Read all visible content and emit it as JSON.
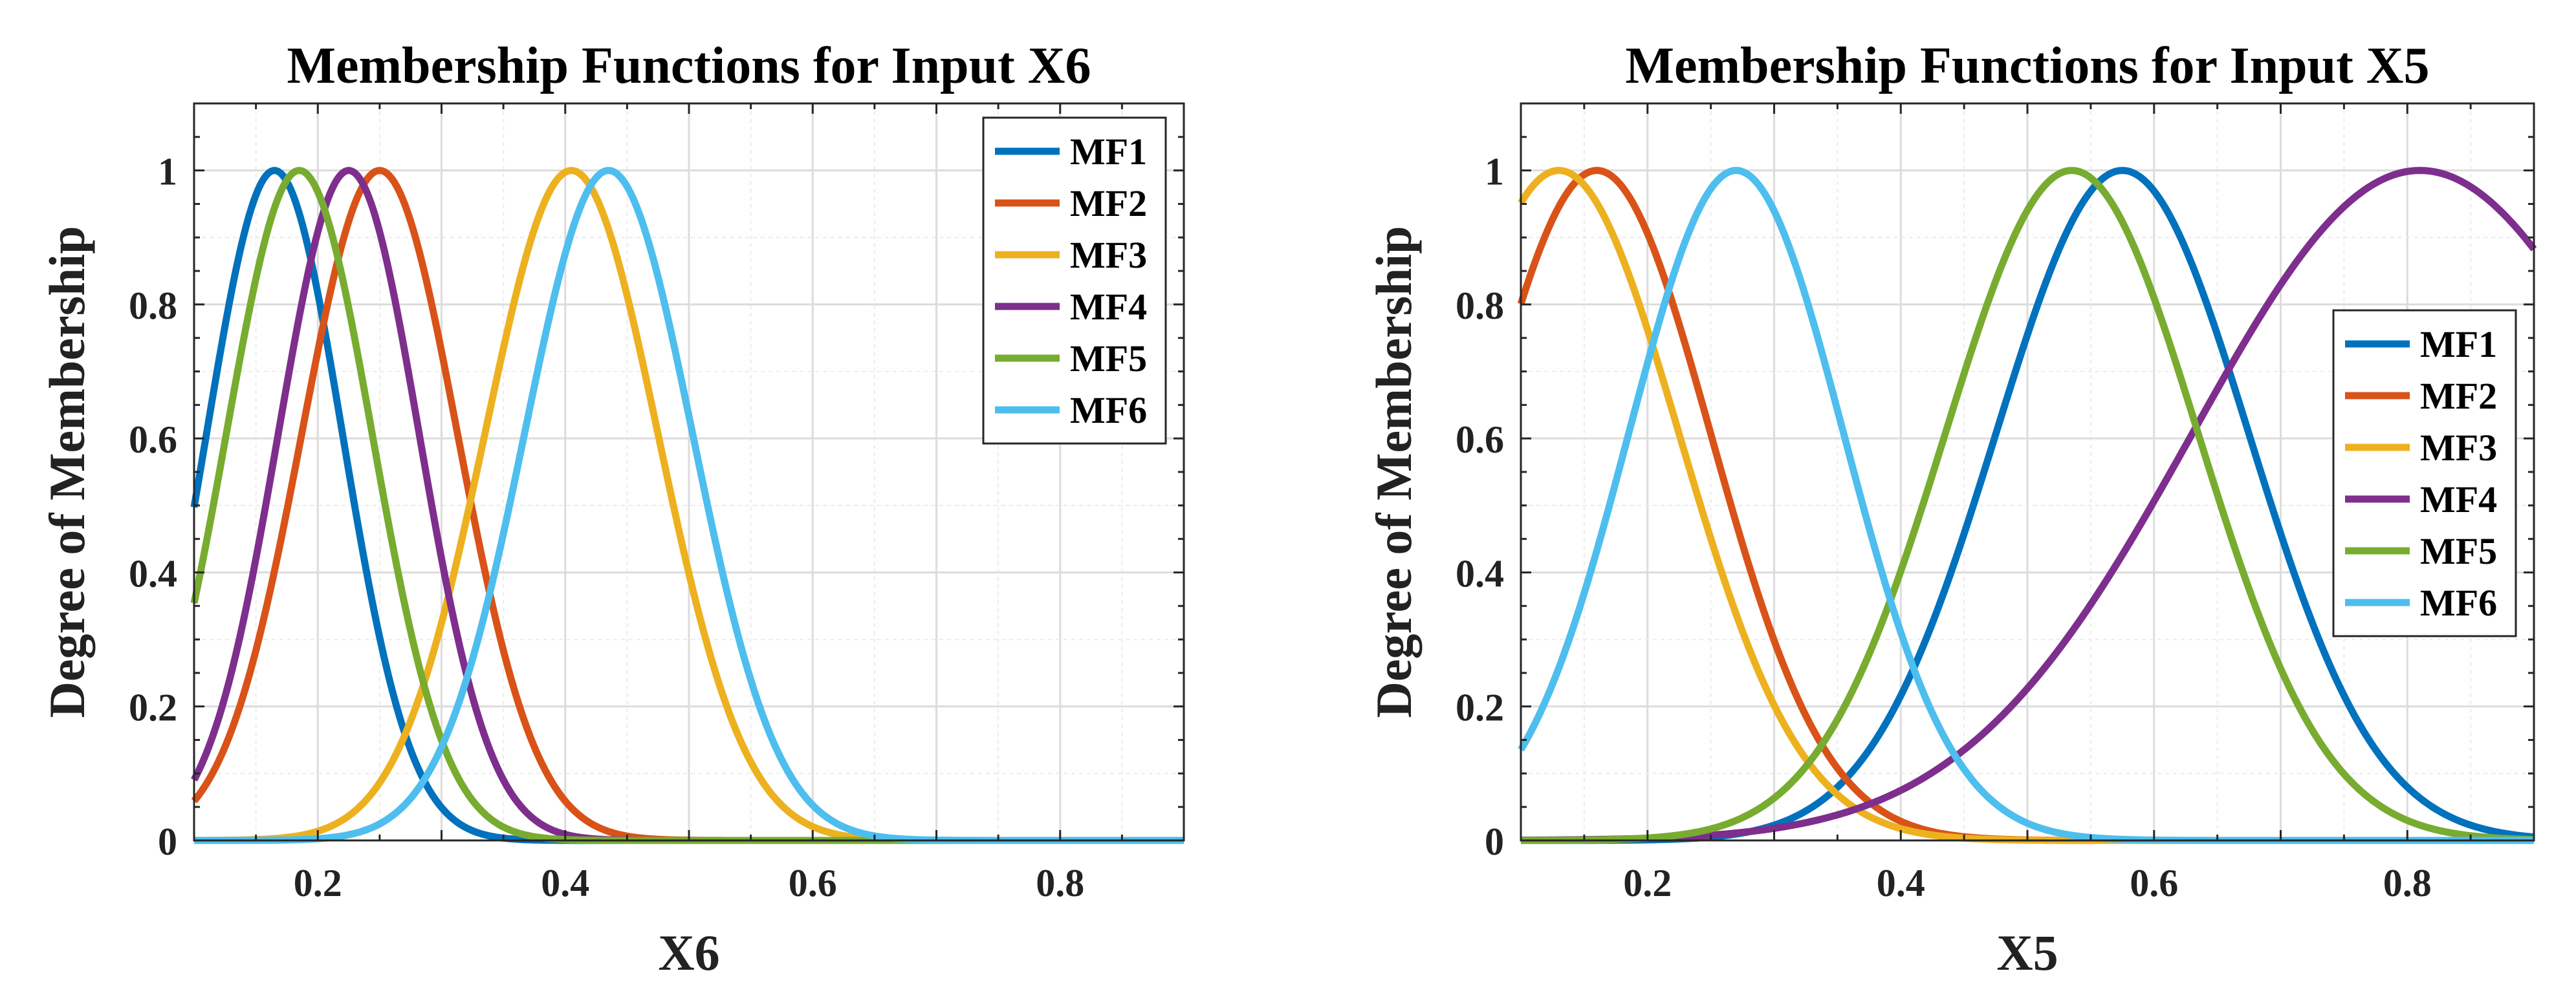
{
  "charts": [
    {
      "type": "line",
      "title": "Membership Functions for Input X6",
      "xlabel": "X6",
      "ylabel": "Degree of Membership",
      "xlim": [
        0.1,
        0.9
      ],
      "ylim": [
        0,
        1.1
      ],
      "xticks": [
        0.2,
        0.4,
        0.6,
        0.8
      ],
      "yticks": [
        0,
        0.2,
        0.4,
        0.6,
        0.8,
        1
      ],
      "grid": true,
      "legend_position": "top-right",
      "series": [
        {
          "name": "MF1",
          "color": "#0072BD",
          "center": 0.165,
          "sigma": 0.055
        },
        {
          "name": "MF2",
          "color": "#D95319",
          "center": 0.25,
          "sigma": 0.063
        },
        {
          "name": "MF3",
          "color": "#EDB120",
          "center": 0.405,
          "sigma": 0.07
        },
        {
          "name": "MF4",
          "color": "#7E2F8E",
          "center": 0.225,
          "sigma": 0.057
        },
        {
          "name": "MF5",
          "color": "#77AC30",
          "center": 0.185,
          "sigma": 0.059
        },
        {
          "name": "MF6",
          "color": "#4DBEEE",
          "center": 0.435,
          "sigma": 0.068
        }
      ]
    },
    {
      "type": "line",
      "title": "Membership Functions for Input X5",
      "xlabel": "X5",
      "ylabel": "Degree of Membership",
      "xlim": [
        0.1,
        0.9
      ],
      "ylim": [
        0,
        1.1
      ],
      "xticks": [
        0.2,
        0.4,
        0.6,
        0.8
      ],
      "yticks": [
        0,
        0.2,
        0.4,
        0.6,
        0.8,
        1
      ],
      "grid": true,
      "legend_position": "middle-right",
      "series": [
        {
          "name": "MF1",
          "color": "#0072BD",
          "center": 0.575,
          "sigma": 0.1
        },
        {
          "name": "MF2",
          "color": "#D95319",
          "center": 0.16,
          "sigma": 0.09
        },
        {
          "name": "MF3",
          "color": "#EDB120",
          "center": 0.13,
          "sigma": 0.095
        },
        {
          "name": "MF4",
          "color": "#7E2F8E",
          "center": 0.81,
          "sigma": 0.18
        },
        {
          "name": "MF5",
          "color": "#77AC30",
          "center": 0.535,
          "sigma": 0.1
        },
        {
          "name": "MF6",
          "color": "#4DBEEE",
          "center": 0.27,
          "sigma": 0.085
        }
      ]
    }
  ]
}
